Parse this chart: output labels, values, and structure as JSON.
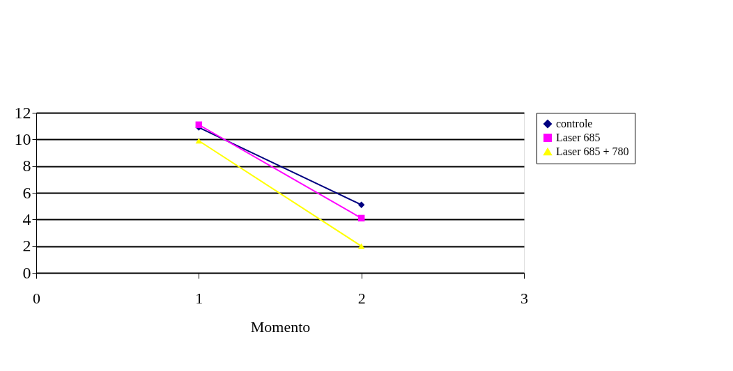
{
  "chart_data": {
    "type": "line",
    "xlabel": "Momento",
    "x": [
      1,
      2
    ],
    "series": [
      {
        "name": "controle",
        "color": "#000080",
        "marker": "diamond",
        "values": [
          10.9,
          5.1
        ]
      },
      {
        "name": "Laser 685",
        "color": "#ff00ff",
        "marker": "square",
        "values": [
          11.1,
          4.1
        ]
      },
      {
        "name": "Laser 685 + 780",
        "color": "#ffff00",
        "marker": "triangle",
        "values": [
          9.9,
          2.0
        ]
      }
    ],
    "xlim": [
      0,
      3
    ],
    "xticks": [
      0,
      1,
      2,
      3
    ],
    "ylim": [
      0,
      12
    ],
    "yticks": [
      0,
      2,
      4,
      6,
      8,
      10,
      12
    ],
    "grid": "y",
    "legend": "right",
    "line_style": "solid"
  }
}
